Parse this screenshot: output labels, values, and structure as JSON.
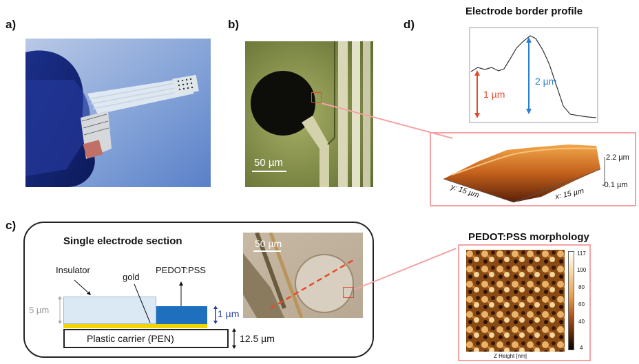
{
  "panels": {
    "a": "a)",
    "b": "b)",
    "c": "c)",
    "d": "d)"
  },
  "panel_b": {
    "scale_label": "50 µm"
  },
  "panel_c": {
    "title": "Single electrode section",
    "labels": {
      "insulator": "Insulator",
      "gold": "gold",
      "pedot": "PEDOT:PSS",
      "carrier": "Plastic carrier (PEN)",
      "thickness_5": "5 µm",
      "thickness_1": "1 µm",
      "thickness_125": "12.5 µm"
    },
    "photo_scale_label": "50 µm"
  },
  "panel_d": {
    "profile_title": "Electrode border profile",
    "annot_1um": "1 µm",
    "annot_2um": "2 µm",
    "afm3d": {
      "z_top": "2.2 µm",
      "z_bottom": "-0.1 µm",
      "y_axis": "y: 15 µm",
      "x_axis": "x: 15 µm"
    },
    "morph_title": "PEDOT:PSS morphology",
    "colorbar_ticks": [
      "117",
      "100",
      "80",
      "60",
      "40",
      "4"
    ],
    "colorbar_label": "Z Height [nm]"
  },
  "colors": {
    "accent_red": "#e34b2c",
    "accent_blue": "#2a7fd0",
    "pink_frame": "#f3a3a3",
    "insulator_fill": "#dbe9f5",
    "gold_fill": "#f2d400",
    "pedot_fill": "#1f6fbf"
  }
}
